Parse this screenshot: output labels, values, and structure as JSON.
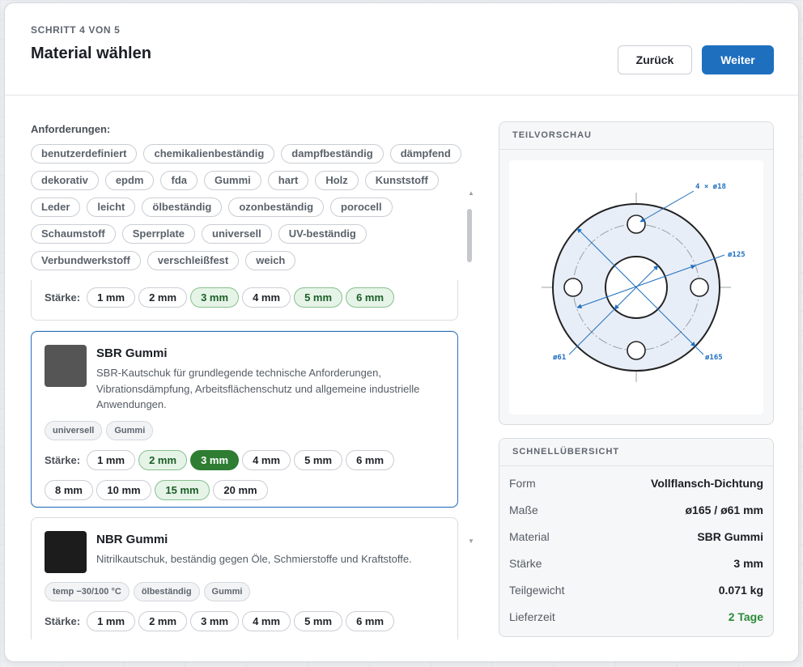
{
  "header": {
    "step": "SCHRITT 4 VON 5",
    "title": "Material wählen",
    "back_label": "Zurück",
    "next_label": "Weiter"
  },
  "requirements": {
    "label": "Anforderungen:",
    "tags": [
      "benutzerdefiniert",
      "chemikalienbeständig",
      "dampfbeständig",
      "dämpfend",
      "dekorativ",
      "epdm",
      "fda",
      "Gummi",
      "hart",
      "Holz",
      "Kunststoff",
      "Leder",
      "leicht",
      "ölbeständig",
      "ozonbeständig",
      "porocell",
      "Schaumstoff",
      "Sperrplate",
      "universell",
      "UV-beständig",
      "Verbundwerkstoff",
      "verschleißfest",
      "weich"
    ]
  },
  "thickness_label": "Stärke:",
  "materials": [
    {
      "name": "",
      "swatch": "#777777",
      "description": "",
      "tags": [],
      "thicknesses": [
        {
          "label": "1 mm",
          "state": "normal"
        },
        {
          "label": "2 mm",
          "state": "normal"
        },
        {
          "label": "3 mm",
          "state": "available"
        },
        {
          "label": "4 mm",
          "state": "normal"
        },
        {
          "label": "5 mm",
          "state": "available"
        },
        {
          "label": "6 mm",
          "state": "available"
        }
      ]
    },
    {
      "name": "SBR Gummi",
      "swatch": "#555555",
      "selected": true,
      "description": "SBR-Kautschuk für grundlegende technische Anforderungen, Vibrationsdämpfung, Arbeitsflächenschutz und allgemeine industrielle Anwendungen.",
      "tags": [
        "universell",
        "Gummi"
      ],
      "thicknesses": [
        {
          "label": "1 mm",
          "state": "normal"
        },
        {
          "label": "2 mm",
          "state": "available"
        },
        {
          "label": "3 mm",
          "state": "active"
        },
        {
          "label": "4 mm",
          "state": "normal"
        },
        {
          "label": "5 mm",
          "state": "normal"
        },
        {
          "label": "6 mm",
          "state": "normal"
        },
        {
          "label": "8 mm",
          "state": "normal"
        },
        {
          "label": "10 mm",
          "state": "normal"
        },
        {
          "label": "15 mm",
          "state": "available"
        },
        {
          "label": "20 mm",
          "state": "normal"
        }
      ]
    },
    {
      "name": "NBR Gummi",
      "swatch": "#1c1c1c",
      "description": "Nitrilkautschuk, beständig gegen Öle, Schmierstoffe und Kraftstoffe.",
      "tags": [
        "temp −30/100 °C",
        "ölbeständig",
        "Gummi"
      ],
      "thicknesses": [
        {
          "label": "1 mm",
          "state": "normal"
        },
        {
          "label": "2 mm",
          "state": "normal"
        },
        {
          "label": "3 mm",
          "state": "normal"
        },
        {
          "label": "4 mm",
          "state": "normal"
        },
        {
          "label": "5 mm",
          "state": "normal"
        },
        {
          "label": "6 mm",
          "state": "normal"
        },
        {
          "label": "",
          "state": "available"
        }
      ]
    }
  ],
  "preview": {
    "title": "TEILVORSCHAU",
    "labels": {
      "holes": "4 × ø18",
      "bolt_circle": "ø125",
      "inner": "ø61",
      "outer": "ø165"
    },
    "accent": "#1f6fbf"
  },
  "summary": {
    "title": "SCHNELLÜBERSICHT",
    "rows": [
      {
        "key": "Form",
        "value": "Vollflansch-Dichtung"
      },
      {
        "key": "Maße",
        "value": "ø165 / ø61 mm"
      },
      {
        "key": "Material",
        "value": "SBR Gummi"
      },
      {
        "key": "Stärke",
        "value": "3 mm"
      },
      {
        "key": "Teilgewicht",
        "value": "0.071 kg"
      },
      {
        "key": "Lieferzeit",
        "value": "2 Tage",
        "color": "#2e8b3a"
      }
    ]
  },
  "colors": {
    "primary": "#1f6fbf",
    "active_chip": "#2e7d32",
    "available_chip": "#e6f4e8"
  }
}
